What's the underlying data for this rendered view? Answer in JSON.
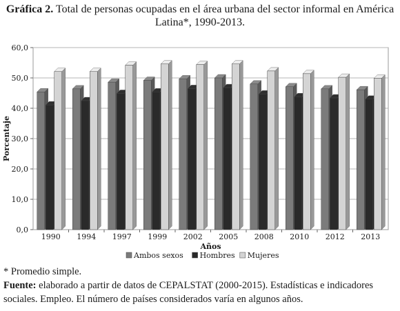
{
  "title": {
    "label": "Gráfica 2.",
    "line1": "Total de personas ocupadas en el área urbana del sector informal en América",
    "line2": "Latina*, 1990-2013."
  },
  "chart_data": {
    "type": "bar",
    "categories": [
      "1990",
      "1994",
      "1997",
      "1999",
      "2002",
      "2005",
      "2008",
      "2010",
      "2012",
      "2013"
    ],
    "series": [
      {
        "name": "Ambos sexos",
        "color": "#7b7b7b",
        "values": [
          45.4,
          46.4,
          48.6,
          49.2,
          49.7,
          50.0,
          48.0,
          47.1,
          46.4,
          46.1
        ]
      },
      {
        "name": "Hombres",
        "color": "#2a2a2a",
        "values": [
          41.1,
          42.5,
          44.9,
          45.4,
          46.5,
          46.8,
          44.7,
          43.8,
          43.4,
          43.0
        ]
      },
      {
        "name": "Mujeres",
        "color": "#d4d4d4",
        "values": [
          52.1,
          52.1,
          54.2,
          54.6,
          54.4,
          54.6,
          52.3,
          51.4,
          50.2,
          49.9
        ]
      }
    ],
    "yticks": [
      "0,0",
      "10,0",
      "20,0",
      "30,0",
      "40,0",
      "50,0",
      "60,0"
    ],
    "ylim": [
      0,
      60
    ],
    "xlabel": "Años",
    "ylabel": "Porcentaje",
    "grid": true,
    "legend_position": "bottom"
  },
  "footnotes": {
    "asterisk": "* Promedio simple.",
    "source_label": "Fuente:",
    "source_text": "elaborado a partir de datos de CEPALSTAT (2000-2015). Estadísticas e indicadores sociales. Empleo. El número de países considerados varía en algunos años."
  }
}
